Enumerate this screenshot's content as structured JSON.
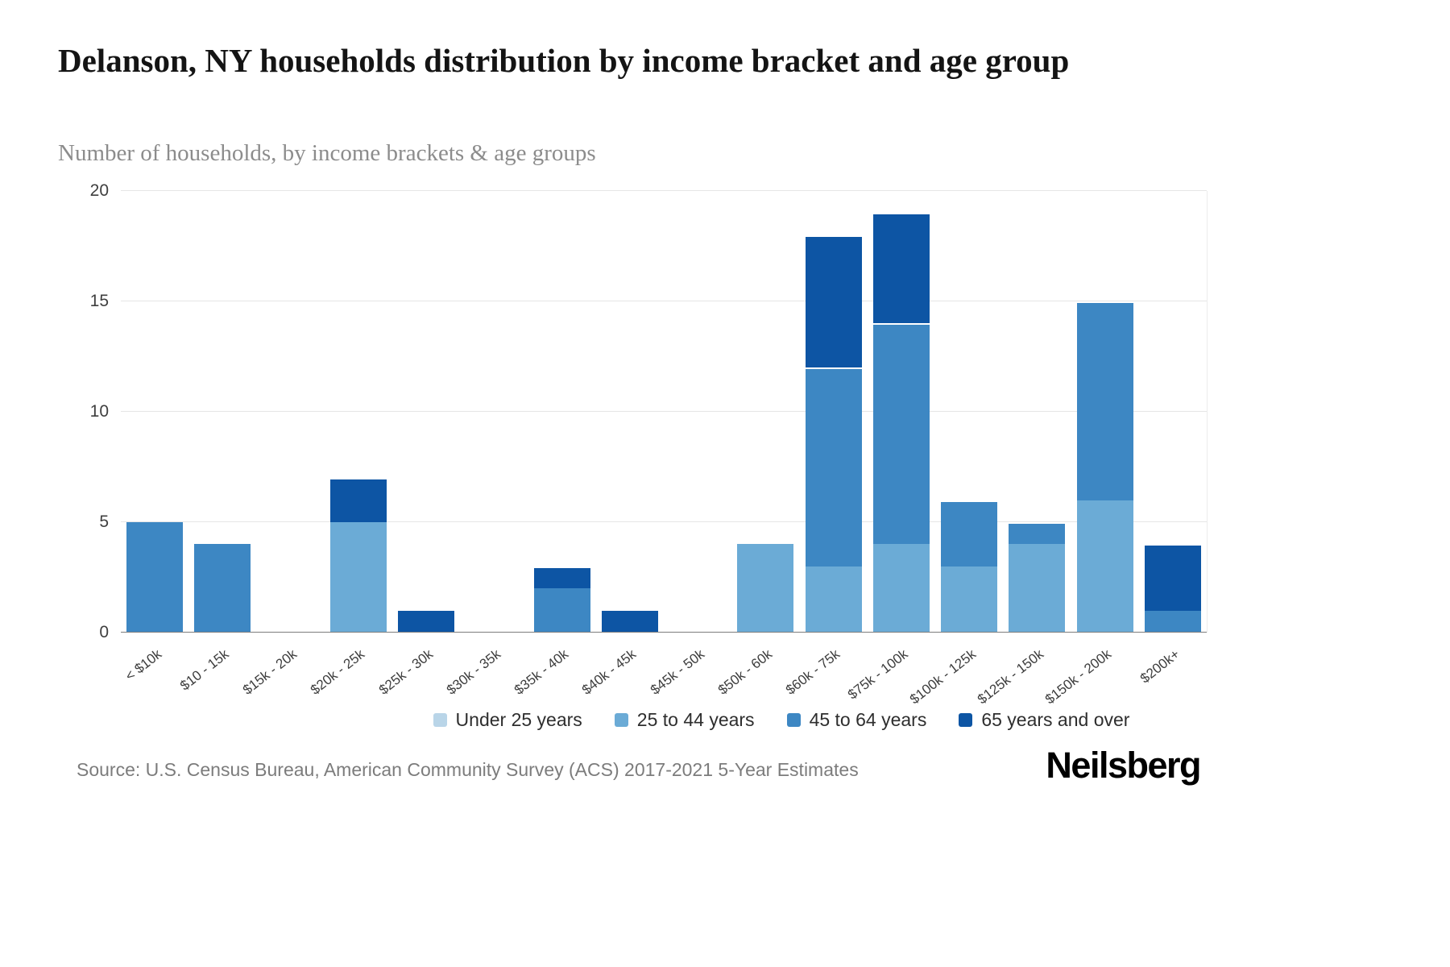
{
  "header": {
    "title": "Delanson, NY households distribution by income bracket and age group",
    "subtitle": "Number of households, by income brackets & age groups"
  },
  "chart_data": {
    "type": "bar",
    "stacked": true,
    "title": "Delanson, NY households distribution by income bracket and age group",
    "subtitle": "Number of households, by income brackets & age groups",
    "xlabel": "",
    "ylabel": "Number of households",
    "ylim": [
      0,
      20
    ],
    "yticks": [
      0,
      5,
      10,
      15,
      20
    ],
    "grid": true,
    "legend_position": "bottom",
    "categories": [
      "< $10k",
      "$10 - 15k",
      "$15k - 20k",
      "$20k - 25k",
      "$25k - 30k",
      "$30k - 35k",
      "$35k - 40k",
      "$40k - 45k",
      "$45k - 50k",
      "$50k - 60k",
      "$60k - 75k",
      "$75k - 100k",
      "$100k - 125k",
      "$125k - 150k",
      "$150k - 200k",
      "$200k+"
    ],
    "series": [
      {
        "name": "Under 25 years",
        "color": "#b9d5e8",
        "values": [
          0,
          0,
          0,
          0,
          0,
          0,
          0,
          0,
          0,
          0,
          0,
          0,
          0,
          0,
          0,
          0
        ]
      },
      {
        "name": "25 to 44 years",
        "color": "#6babd6",
        "values": [
          0,
          0,
          0,
          5,
          0,
          0,
          0,
          0,
          0,
          4,
          3,
          4,
          3,
          4,
          6,
          0
        ]
      },
      {
        "name": "45 to 64 years",
        "color": "#3d87c3",
        "values": [
          5,
          4,
          0,
          0,
          0,
          0,
          2,
          0,
          0,
          0,
          9,
          10,
          3,
          1,
          9,
          1
        ]
      },
      {
        "name": "65 years and over",
        "color": "#0d55a4",
        "values": [
          0,
          0,
          0,
          2,
          1,
          0,
          1,
          1,
          0,
          0,
          6,
          5,
          0,
          0,
          0,
          3
        ]
      }
    ],
    "totals": [
      5,
      4,
      0,
      7,
      1,
      0,
      3,
      1,
      0,
      4,
      18,
      19,
      6,
      5,
      15,
      4
    ]
  },
  "footer": {
    "source": "Source: U.S. Census Bureau, American Community Survey (ACS) 2017-2021 5-Year Estimates",
    "brand": "Neilsberg"
  }
}
